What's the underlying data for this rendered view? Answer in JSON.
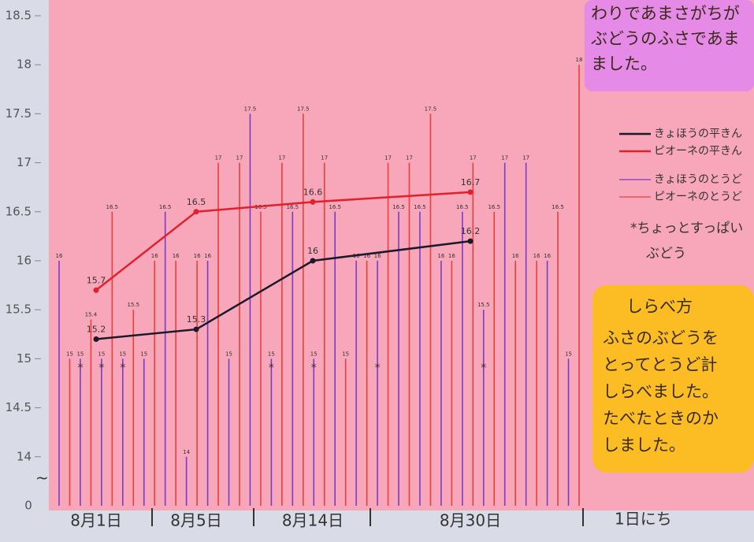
{
  "chart_data": {
    "type": "line",
    "categories": [
      "8月1日",
      "8月5日",
      "8月14日",
      "8月30日"
    ],
    "x_label": "1日にち",
    "axis_origin_label": "0",
    "ylim": [
      13.5,
      18.5
    ],
    "yticks": [
      14,
      14.5,
      15,
      15.5,
      16,
      16.5,
      17,
      17.5,
      18,
      18.5
    ],
    "series": [
      {
        "name": "きょほうの平きん",
        "color": "#1a1a2a",
        "values": [
          15.2,
          15.3,
          16,
          16.2
        ]
      },
      {
        "name": "ピオーネの平きん",
        "color": "#e0202a",
        "values": [
          15.7,
          16.5,
          16.6,
          16.7
        ]
      }
    ],
    "measurements": [
      {
        "name": "きょほうのとうど",
        "color": "#7a3cc8",
        "values": [
          16,
          15,
          15,
          15,
          15,
          16.5,
          14,
          16,
          15,
          17.5,
          15,
          16.5,
          15,
          16.5,
          16,
          16,
          16.5,
          16.5,
          16,
          16.5,
          15.5,
          17,
          17,
          16,
          15
        ],
        "sour": [
          false,
          true,
          true,
          true,
          false,
          false,
          false,
          false,
          false,
          false,
          true,
          false,
          true,
          false,
          false,
          true,
          false,
          false,
          false,
          false,
          true,
          false,
          false,
          false,
          false
        ]
      },
      {
        "name": "ピオーネのとうど",
        "color": "#e8403a",
        "values": [
          15,
          15.4,
          16.5,
          15.5,
          16,
          16,
          16,
          17,
          17,
          16.5,
          17,
          17.5,
          17,
          15,
          16,
          17,
          17,
          17.5,
          16,
          17,
          16.5,
          16,
          16,
          16.5,
          18
        ]
      }
    ],
    "sour_mark": "*",
    "sour_note": [
      "*ちょっとすっぱい",
      "ぶどう"
    ]
  },
  "notes": {
    "top": [
      "わりであまさがちが",
      "ぶどうのふさであま",
      "ました。"
    ],
    "method": {
      "title": "しらべ方",
      "lines": [
        "ふさのぶどうを",
        "とってとうど計",
        "しらべました。",
        "たべたときのか",
        "しました。"
      ]
    }
  }
}
